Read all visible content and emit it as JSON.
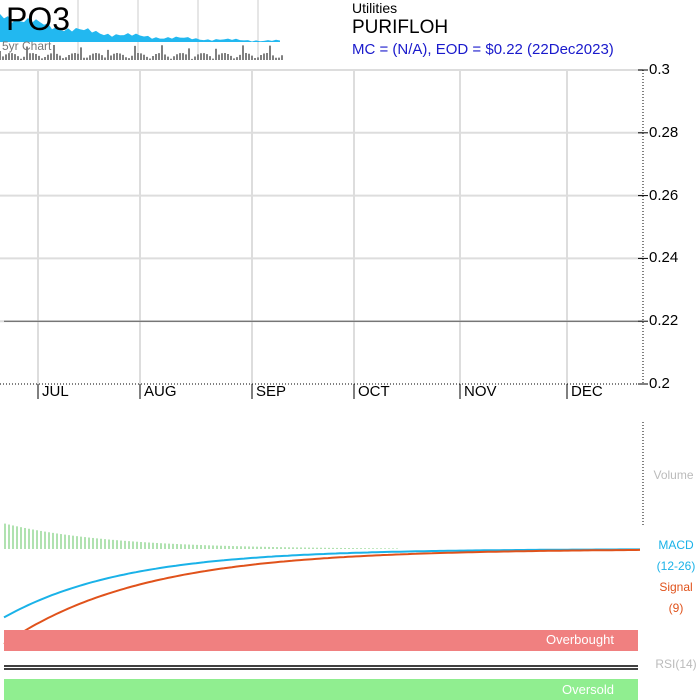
{
  "header": {
    "ticker": "PO3",
    "mini_chart_label": "5yr Chart",
    "sector": "Utilities",
    "company": "PURIFLOH",
    "summary": "MC = (N/A), EOD = $0.22 (22Dec2023)"
  },
  "chart_data": [
    {
      "type": "line",
      "panel": "price",
      "y_ticks": [
        "0.3",
        "0.28",
        "0.26",
        "0.24",
        "0.22",
        "0.2"
      ],
      "ylim": [
        0.2,
        0.3
      ],
      "months": [
        "JUL",
        "AUG",
        "SEP",
        "OCT",
        "NOV",
        "DEC"
      ],
      "series": [
        {
          "values": [
            0.22,
            0.22,
            0.22,
            0.22,
            0.22,
            0.22
          ]
        }
      ],
      "grid": true
    },
    {
      "type": "bar",
      "panel": "volume",
      "label": "Volume"
    },
    {
      "type": "line",
      "panel": "macd",
      "macd_label": "MACD",
      "macd_params": "(12-26)",
      "signal_label": "Signal",
      "signal_params": "(9)",
      "macd_start": -0.018,
      "signal_start": -0.025,
      "histogram_start": 0.009
    },
    {
      "type": "line",
      "panel": "rsi",
      "label": "RSI(14)",
      "overbought_label": "Overbought",
      "oversold_label": "Oversold"
    }
  ],
  "colors": {
    "macd": "#1ab2e8",
    "signal": "#e0521b",
    "histogram": "#8fd68f",
    "overbought": "#f08080",
    "oversold": "#90ee90",
    "mini_area": "#22b8f0"
  }
}
